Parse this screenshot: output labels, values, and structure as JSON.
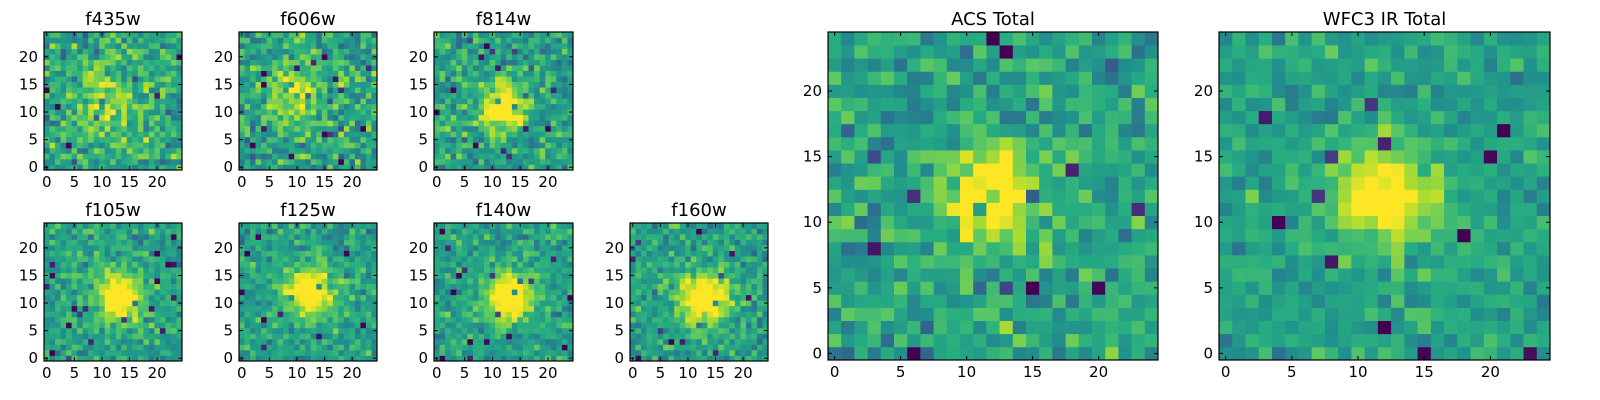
{
  "chart_data": [
    {
      "type": "heatmap",
      "title": "f435w",
      "colormap": "viridis",
      "grid_size": 25,
      "xticks": [
        "0",
        "5",
        "10",
        "15",
        "20"
      ],
      "yticks": [
        "0",
        "5",
        "10",
        "15",
        "20"
      ],
      "source_peak": [
        11,
        12
      ],
      "source_width": 5,
      "source_strength": 0.25,
      "noise": 0.45,
      "seed": 11
    },
    {
      "type": "heatmap",
      "title": "f606w",
      "colormap": "viridis",
      "grid_size": 25,
      "xticks": [
        "0",
        "5",
        "10",
        "15",
        "20"
      ],
      "yticks": [
        "0",
        "5",
        "10",
        "15",
        "20"
      ],
      "source_peak": [
        10,
        13
      ],
      "source_width": 4,
      "source_strength": 0.3,
      "noise": 0.45,
      "seed": 23
    },
    {
      "type": "heatmap",
      "title": "f814w",
      "colormap": "viridis",
      "grid_size": 25,
      "xticks": [
        "0",
        "5",
        "10",
        "15",
        "20"
      ],
      "yticks": [
        "0",
        "5",
        "10",
        "15",
        "20"
      ],
      "source_peak": [
        12,
        11
      ],
      "source_width": 3,
      "source_strength": 0.55,
      "noise": 0.4,
      "seed": 37
    },
    {
      "type": "heatmap",
      "title": "f105w",
      "colormap": "viridis",
      "grid_size": 25,
      "xticks": [
        "0",
        "5",
        "10",
        "15",
        "20"
      ],
      "yticks": [
        "0",
        "5",
        "10",
        "15",
        "20"
      ],
      "source_peak": [
        13,
        11
      ],
      "source_width": 3,
      "source_strength": 0.6,
      "noise": 0.33,
      "seed": 41
    },
    {
      "type": "heatmap",
      "title": "f125w",
      "colormap": "viridis",
      "grid_size": 25,
      "xticks": [
        "0",
        "5",
        "10",
        "15",
        "20"
      ],
      "yticks": [
        "0",
        "5",
        "10",
        "15",
        "20"
      ],
      "source_peak": [
        12,
        12
      ],
      "source_width": 3,
      "source_strength": 0.6,
      "noise": 0.33,
      "seed": 53
    },
    {
      "type": "heatmap",
      "title": "f140w",
      "colormap": "viridis",
      "grid_size": 25,
      "xticks": [
        "0",
        "5",
        "10",
        "15",
        "20"
      ],
      "yticks": [
        "0",
        "5",
        "10",
        "15",
        "20"
      ],
      "source_peak": [
        13,
        11
      ],
      "source_width": 3,
      "source_strength": 0.65,
      "noise": 0.32,
      "seed": 67
    },
    {
      "type": "heatmap",
      "title": "f160w",
      "colormap": "viridis",
      "grid_size": 25,
      "xticks": [
        "0",
        "5",
        "10",
        "15",
        "20"
      ],
      "yticks": [
        "0",
        "5",
        "10",
        "15",
        "20"
      ],
      "source_peak": [
        13,
        11
      ],
      "source_width": 3,
      "source_strength": 0.65,
      "noise": 0.35,
      "seed": 79
    },
    {
      "type": "heatmap",
      "title": "ACS Total",
      "colormap": "viridis",
      "grid_size": 25,
      "xticks": [
        "0",
        "5",
        "10",
        "15",
        "20"
      ],
      "yticks": [
        "0",
        "5",
        "10",
        "15",
        "20"
      ],
      "source_peak": [
        12,
        12
      ],
      "source_width": 2.5,
      "source_strength": 0.55,
      "noise": 0.38,
      "seed": 97
    },
    {
      "type": "heatmap",
      "title": "WFC3 IR Total",
      "colormap": "viridis",
      "grid_size": 25,
      "xticks": [
        "0",
        "5",
        "10",
        "15",
        "20"
      ],
      "yticks": [
        "0",
        "5",
        "10",
        "15",
        "20"
      ],
      "source_peak": [
        12,
        12
      ],
      "source_width": 2.5,
      "source_strength": 0.6,
      "noise": 0.28,
      "seed": 113
    }
  ]
}
